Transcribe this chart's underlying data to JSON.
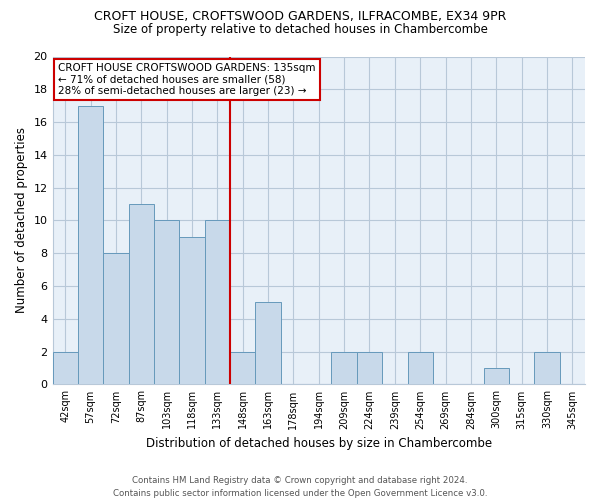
{
  "title": "CROFT HOUSE, CROFTSWOOD GARDENS, ILFRACOMBE, EX34 9PR",
  "subtitle": "Size of property relative to detached houses in Chambercombe",
  "xlabel": "Distribution of detached houses by size in Chambercombe",
  "ylabel": "Number of detached properties",
  "bin_labels": [
    "42sqm",
    "57sqm",
    "72sqm",
    "87sqm",
    "103sqm",
    "118sqm",
    "133sqm",
    "148sqm",
    "163sqm",
    "178sqm",
    "194sqm",
    "209sqm",
    "224sqm",
    "239sqm",
    "254sqm",
    "269sqm",
    "284sqm",
    "300sqm",
    "315sqm",
    "330sqm",
    "345sqm"
  ],
  "bar_heights": [
    2,
    17,
    8,
    11,
    10,
    9,
    10,
    2,
    5,
    0,
    0,
    2,
    2,
    0,
    2,
    0,
    0,
    1,
    0,
    2,
    0
  ],
  "bar_color": "#c8d9ea",
  "bar_edgecolor": "#6699bb",
  "vline_color": "#cc0000",
  "annotation_line1": "CROFT HOUSE CROFTSWOOD GARDENS: 135sqm",
  "annotation_line2": "← 71% of detached houses are smaller (58)",
  "annotation_line3": "28% of semi-detached houses are larger (23) →",
  "annotation_box_edgecolor": "#cc0000",
  "ylim": [
    0,
    20
  ],
  "yticks": [
    0,
    2,
    4,
    6,
    8,
    10,
    12,
    14,
    16,
    18,
    20
  ],
  "footer_line1": "Contains HM Land Registry data © Crown copyright and database right 2024.",
  "footer_line2": "Contains public sector information licensed under the Open Government Licence v3.0.",
  "bg_color": "#ffffff",
  "plot_bg_color": "#e8f0f8",
  "grid_color": "#b8c8d8"
}
